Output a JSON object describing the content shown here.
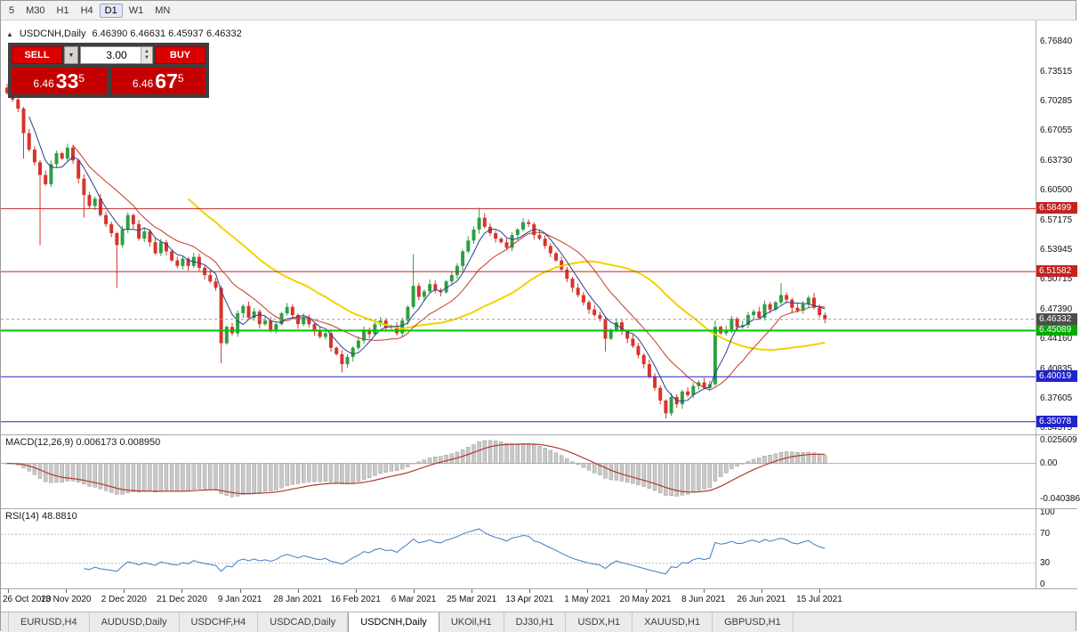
{
  "toolbar": {
    "period_buttons": [
      "5",
      "M30",
      "H1",
      "H4",
      "D1",
      "W1",
      "MN"
    ],
    "active_period": "D1"
  },
  "chart_header": {
    "collapse_arrow": "▲",
    "symbol_period": "USDCNH,Daily",
    "ohlc_text": "6.46390 6.46631 6.45937 6.46332"
  },
  "trade_panel": {
    "sell_label": "SELL",
    "buy_label": "BUY",
    "volume": "3.00",
    "dropdown_arrow": "▼",
    "spinner_up": "▲",
    "spinner_down": "▼",
    "bid": {
      "prefix": "6.46",
      "pips": "33",
      "sup": "5"
    },
    "ask": {
      "prefix": "6.46",
      "pips": "67",
      "sup": "5"
    }
  },
  "price_axis": {
    "labels": [
      "6.76840",
      "6.73515",
      "6.70285",
      "6.67055",
      "6.63730",
      "6.60500",
      "6.57175",
      "6.53945",
      "6.50715",
      "6.47390",
      "6.44160",
      "6.40835",
      "6.37605",
      "6.34375"
    ]
  },
  "macd_panel": {
    "label": "MACD(12,26,9) 0.006173 0.008950",
    "ticks": [
      {
        "value": 0.025609,
        "label": "0.025609"
      },
      {
        "value": 0,
        "label": "0.00"
      },
      {
        "value": -0.040386,
        "label": "-0.040386"
      }
    ],
    "histogram_fill": "#c9c9c9",
    "histogram_stroke": "#8c8c8c",
    "signal_color": "#b03a2e",
    "zero_line_color": "#b0b0b0"
  },
  "rsi_panel": {
    "label": "RSI(14) 48.8810",
    "ticks": [
      {
        "value": 100,
        "label": "100"
      },
      {
        "value": 70,
        "label": "70"
      },
      {
        "value": 30,
        "label": "30"
      },
      {
        "value": 0,
        "label": "0"
      }
    ],
    "line_color": "#3f7cc4",
    "level_lines": [
      70,
      30
    ],
    "level_color": "#b8b8b8"
  },
  "x_axis": {
    "date_labels": [
      "26 Oct 2020",
      "13 Nov 2020",
      "2 Dec 2020",
      "21 Dec 2020",
      "9 Jan 2021",
      "28 Jan 2021",
      "16 Feb 2021",
      "6 Mar 2021",
      "25 Mar 2021",
      "13 Apr 2021",
      "1 May 2021",
      "20 May 2021",
      "8 Jun 2021",
      "26 Jun 2021",
      "15 Jul 2021"
    ]
  },
  "tabs": {
    "items": [
      "EURUSD,H4",
      "AUDUSD,Daily",
      "USDCHF,H4",
      "USDCAD,Daily",
      "USDCNH,Daily",
      "UKOil,H1",
      "DJ30,H1",
      "USDX,H1",
      "XAUUSD,H1",
      "GBPUSD,H1"
    ],
    "active": "USDCNH,Daily"
  },
  "chart_data": {
    "type": "candlestick",
    "symbol": "USDCNH",
    "timeframe": "Daily",
    "ohlc_current": {
      "open": 6.4639,
      "high": 6.46631,
      "low": 6.45937,
      "close": 6.46332
    },
    "ylim": [
      6.3368,
      6.7919
    ],
    "up_color": "#2f9e44",
    "down_color": "#d7342c",
    "first_open": 6.718,
    "closes": [
      6.712,
      6.705,
      6.695,
      6.668,
      6.65,
      6.636,
      6.622,
      6.612,
      6.634,
      6.646,
      6.64,
      6.652,
      6.638,
      6.618,
      6.6,
      6.588,
      6.596,
      6.578,
      6.568,
      6.558,
      6.545,
      6.562,
      6.578,
      6.568,
      6.552,
      6.56,
      6.548,
      6.536,
      6.548,
      6.538,
      6.528,
      6.522,
      6.53,
      6.522,
      6.532,
      6.52,
      6.512,
      6.505,
      6.498,
      6.437,
      6.455,
      6.448,
      6.47,
      6.478,
      6.465,
      6.472,
      6.458,
      6.462,
      6.452,
      6.458,
      6.47,
      6.477,
      6.468,
      6.458,
      6.465,
      6.458,
      6.45,
      6.444,
      6.448,
      6.432,
      6.425,
      6.414,
      6.422,
      6.432,
      6.44,
      6.452,
      6.447,
      6.458,
      6.462,
      6.454,
      6.456,
      6.448,
      6.462,
      6.477,
      6.5,
      6.488,
      6.494,
      6.502,
      6.495,
      6.493,
      6.505,
      6.512,
      6.522,
      6.538,
      6.55,
      6.562,
      6.575,
      6.565,
      6.558,
      6.552,
      6.548,
      6.542,
      6.556,
      6.562,
      6.57,
      6.568,
      6.556,
      6.552,
      6.544,
      6.536,
      6.528,
      6.518,
      6.508,
      6.498,
      6.49,
      6.482,
      6.474,
      6.468,
      6.464,
      6.442,
      6.452,
      6.46,
      6.45,
      6.442,
      6.434,
      6.424,
      6.414,
      6.4,
      6.388,
      6.374,
      6.36,
      6.378,
      6.37,
      6.384,
      6.38,
      6.39,
      6.394,
      6.388,
      6.392,
      6.455,
      6.448,
      6.452,
      6.464,
      6.455,
      6.457,
      6.468,
      6.472,
      6.465,
      6.48,
      6.474,
      6.482,
      6.49,
      6.485,
      6.476,
      6.473,
      6.48,
      6.487,
      6.476,
      6.468,
      6.4633
    ],
    "wick_overrides": {
      "0": {
        "high": 6.722
      },
      "3": {
        "low": 6.64
      },
      "6": {
        "low": 6.545
      },
      "14": {
        "low": 6.575
      },
      "20": {
        "low": 6.498
      },
      "39": {
        "low": 6.415
      },
      "61": {
        "low": 6.405
      },
      "74": {
        "high": 6.535
      },
      "86": {
        "high": 6.586
      },
      "109": {
        "low": 6.428
      },
      "120": {
        "low": 6.354
      },
      "129": {
        "high": 6.462,
        "low": 6.39
      },
      "141": {
        "high": 6.503
      }
    },
    "moving_averages": [
      {
        "name": "MA34",
        "period": 34,
        "color": "#f2d200",
        "width": 2
      },
      {
        "name": "MA13",
        "period": 13,
        "color": "#c23b22",
        "width": 1
      },
      {
        "name": "MA5",
        "period": 5,
        "color": "#27408b",
        "width": 1
      }
    ],
    "hlines": [
      {
        "price": 6.58499,
        "color": "#c22222",
        "width": 1,
        "label": "6.58499",
        "label_bg": "#c22222"
      },
      {
        "price": 6.51582,
        "color": "#c22222",
        "width": 1,
        "label": "6.51582",
        "label_bg": "#c22222"
      },
      {
        "price": 6.45089,
        "color": "#00c400",
        "width": 2,
        "label": "6.45089",
        "label_bg": "#00a900"
      },
      {
        "price": 6.40019,
        "color": "#2222cc",
        "width": 1,
        "label": "6.40019",
        "label_bg": "#2222cc"
      },
      {
        "price": 6.35078,
        "color": "#2222cc",
        "width": 1,
        "label": "6.35078",
        "label_bg": "#2222cc"
      }
    ],
    "bid_line": {
      "price": 6.46332,
      "color": "#999999",
      "label": "6.46332",
      "label_bg": "#4d4d4d"
    },
    "macd": {
      "fast": 12,
      "slow": 26,
      "signal": 9,
      "ylim": [
        -0.0502,
        0.0315
      ]
    },
    "rsi": {
      "period": 14,
      "ylim": [
        -5,
        105
      ]
    }
  }
}
